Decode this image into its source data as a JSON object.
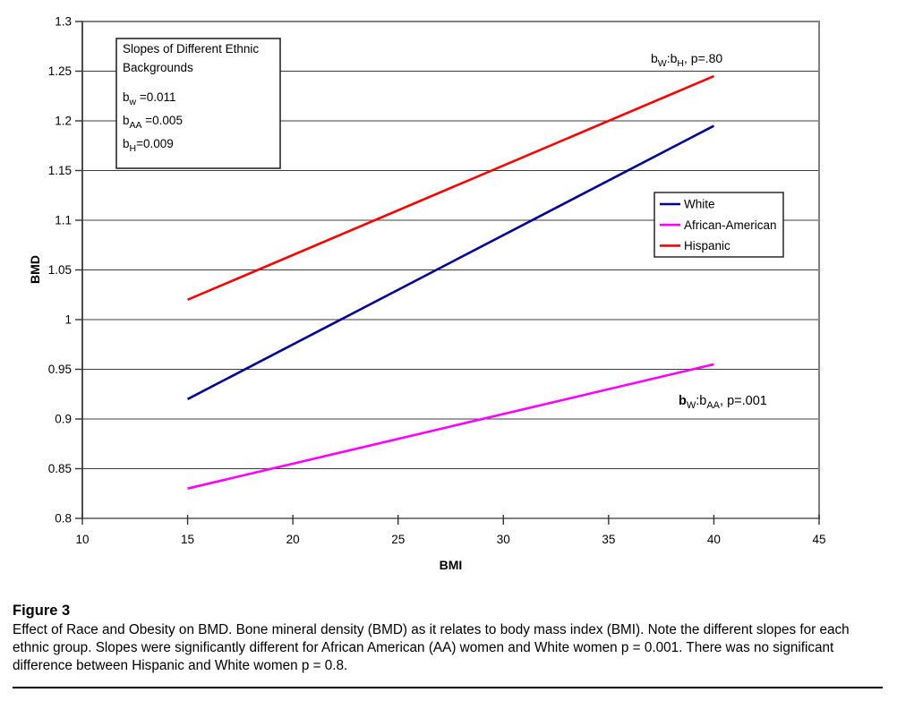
{
  "figure": {
    "label": "Figure 3",
    "caption": "Effect of Race and Obesity on BMD. Bone mineral density (BMD) as it relates to body mass index (BMI). Note the different slopes for each ethnic group. Slopes were significantly different for African American (AA) women and White women p = 0.001. There was no significant difference between Hispanic and White women p = 0.8."
  },
  "chart_data": {
    "type": "line",
    "title": "",
    "xlabel": "BMI",
    "ylabel": "BMD",
    "xlim": [
      10,
      45
    ],
    "ylim": [
      0.8,
      1.3
    ],
    "x_ticks": [
      "10",
      "15",
      "20",
      "25",
      "30",
      "35",
      "40",
      "45"
    ],
    "y_ticks": [
      "0.8",
      "0.85",
      "0.9",
      "0.95",
      "1",
      "1.05",
      "1.1",
      "1.15",
      "1.2",
      "1.25",
      "1.3"
    ],
    "grid": "horizontal",
    "legend_position": "inside-right",
    "series": [
      {
        "name": "White",
        "color": "#000099",
        "slope": 0.011,
        "points": [
          [
            15,
            0.92
          ],
          [
            40,
            1.195
          ]
        ]
      },
      {
        "name": "African-American",
        "color": "#ff00ff",
        "slope": 0.005,
        "points": [
          [
            15,
            0.83
          ],
          [
            40,
            0.955
          ]
        ]
      },
      {
        "name": "Hispanic",
        "color": "#ff0000",
        "slope": 0.009,
        "points": [
          [
            15,
            1.02
          ],
          [
            40,
            1.245
          ]
        ]
      }
    ],
    "info_box": {
      "title_lines": [
        "Slopes of Different Ethnic",
        "Backgrounds"
      ],
      "entries": [
        {
          "segments": [
            {
              "t": "b"
            },
            {
              "t": "w",
              "sub": true
            },
            {
              "t": " =0.011"
            }
          ]
        },
        {
          "segments": [
            {
              "t": "b"
            },
            {
              "t": "AA",
              "sub": true
            },
            {
              "t": " =0.005"
            }
          ]
        },
        {
          "segments": [
            {
              "t": "b"
            },
            {
              "t": "H",
              "sub": true
            },
            {
              "t": "=0.009"
            }
          ]
        }
      ]
    },
    "annotations": [
      {
        "name": "hispanic-vs-white-pvalue",
        "segments": [
          {
            "t": "b"
          },
          {
            "t": "W",
            "sub": true
          },
          {
            "t": ":b"
          },
          {
            "t": "H",
            "sub": true
          },
          {
            "t": ", p=.80"
          }
        ]
      },
      {
        "name": "white-vs-aa-pvalue",
        "segments": [
          {
            "t": "b",
            "bold": true
          },
          {
            "t": "W",
            "sub": true
          },
          {
            "t": ":b"
          },
          {
            "t": "AA",
            "sub": true
          },
          {
            "t": ", p=.001"
          }
        ]
      }
    ],
    "colors": {
      "background": "#ffffff",
      "gridline": "#3d3d3d",
      "plot_border": "#808080",
      "axis": "#333333",
      "text": "#000000"
    }
  }
}
